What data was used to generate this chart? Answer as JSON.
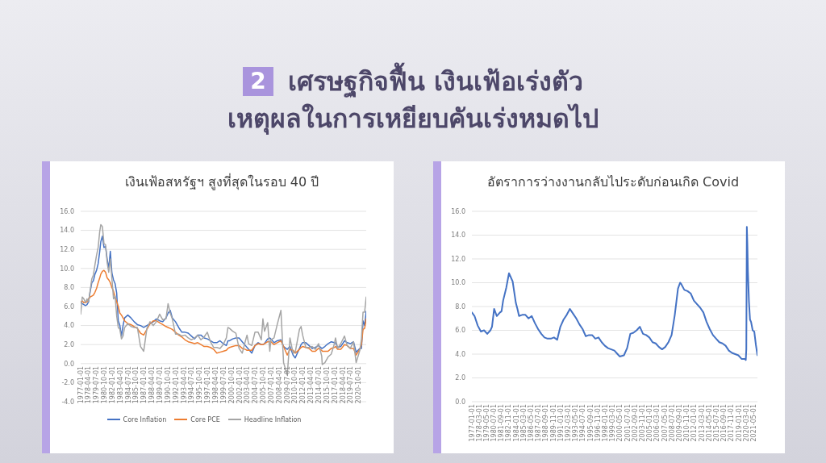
{
  "chart_data": [
    {
      "type": "other",
      "title": "เศรษฐกิจฟื้น เงินเฟ้อเร่งตัว",
      "subtitle": "เหตุผลในการเหยียบคันเร่งหมดไป",
      "annotations": [
        "2"
      ]
    },
    {
      "type": "line",
      "title": "เงินเฟ้อสหรัฐฯ สูงที่สุดในรอบ 40 ปี",
      "grid": "y",
      "legend": "bottom",
      "marker": "none",
      "line_style": "solid",
      "x": [
        "1977-01",
        "1977-04",
        "1977-07",
        "1977-10",
        "1978-01",
        "1978-04",
        "1978-07",
        "1978-10",
        "1979-01",
        "1979-04",
        "1979-07",
        "1979-10",
        "1980-01",
        "1980-03",
        "1980-06",
        "1980-09",
        "1980-12",
        "1981-03",
        "1981-06",
        "1981-09",
        "1981-12",
        "1982-03",
        "1982-06",
        "1982-09",
        "1982-12",
        "1983-03",
        "1983-06",
        "1983-09",
        "1983-12",
        "1984-06",
        "1984-12",
        "1985-06",
        "1985-12",
        "1986-06",
        "1986-12",
        "1987-06",
        "1987-12",
        "1988-06",
        "1988-12",
        "1989-06",
        "1989-12",
        "1990-06",
        "1990-10",
        "1991-02",
        "1991-06",
        "1991-12",
        "1992-06",
        "1992-12",
        "1993-06",
        "1993-12",
        "1994-06",
        "1994-12",
        "1995-06",
        "1995-12",
        "1996-06",
        "1996-12",
        "1997-06",
        "1997-12",
        "1998-06",
        "1998-12",
        "1999-06",
        "1999-12",
        "2000-03",
        "2000-06",
        "2000-12",
        "2001-06",
        "2001-12",
        "2002-06",
        "2002-12",
        "2003-03",
        "2003-06",
        "2003-12",
        "2004-06",
        "2004-12",
        "2005-06",
        "2005-09",
        "2005-12",
        "2006-06",
        "2006-10",
        "2006-12",
        "2007-06",
        "2007-12",
        "2008-07",
        "2008-12",
        "2009-07",
        "2009-12",
        "2010-06",
        "2010-10",
        "2011-06",
        "2011-09",
        "2011-12",
        "2012-06",
        "2012-12",
        "2013-06",
        "2013-12",
        "2014-06",
        "2014-12",
        "2015-01",
        "2015-06",
        "2015-12",
        "2016-06",
        "2016-12",
        "2017-02",
        "2017-06",
        "2017-12",
        "2018-07",
        "2018-12",
        "2019-06",
        "2019-12",
        "2020-05",
        "2020-12",
        "2021-03",
        "2021-06",
        "2021-09",
        "2021-12"
      ],
      "xlim": [
        "1977-01",
        "2021-12"
      ],
      "xticks": [
        "1977-01-01",
        "1978-04-01",
        "1979-07-01",
        "1980-10-01",
        "1982-01-01",
        "1983-04-01",
        "1984-07-01",
        "1985-10-01",
        "1987-01-01",
        "1988-04-01",
        "1989-07-01",
        "1990-10-01",
        "1992-01-01",
        "1993-04-01",
        "1994-07-01",
        "1995-10-01",
        "1997-01-01",
        "1998-04-01",
        "1999-07-01",
        "2000-10-01",
        "2002-01-01",
        "2003-04-01",
        "2004-07-01",
        "2005-10-01",
        "2007-01-01",
        "2008-04-01",
        "2009-07-01",
        "2010-10-01",
        "2012-01-01",
        "2013-04-01",
        "2014-07-01",
        "2015-10-01",
        "2017-01-01",
        "2018-04-01",
        "2019-07-01",
        "2020-10-01"
      ],
      "ylim": [
        -4,
        16
      ],
      "yticks": [
        {
          "value": -4,
          "label": "-4.0"
        },
        {
          "value": -2,
          "label": "-2.0"
        },
        {
          "value": 0,
          "label": "0.0"
        },
        {
          "value": 2,
          "label": "2.0"
        },
        {
          "value": 4,
          "label": "4.0"
        },
        {
          "value": 6,
          "label": "6.0"
        },
        {
          "value": 8,
          "label": "8.0"
        },
        {
          "value": 10,
          "label": "10.0"
        },
        {
          "value": 12,
          "label": "12.0"
        },
        {
          "value": 14,
          "label": "14.0"
        },
        {
          "value": 16,
          "label": "16.0"
        }
      ],
      "series": [
        {
          "name": "Core Inflation",
          "color": "#4472c4",
          "values": [
            6.4,
            6.3,
            6.2,
            6.1,
            6.2,
            6.5,
            7.6,
            8.5,
            8.7,
            9.4,
            9.8,
            10.5,
            11.8,
            12.8,
            13.4,
            12.2,
            12.3,
            11.0,
            10.0,
            11.8,
            9.5,
            8.8,
            8.4,
            7.4,
            4.5,
            4.0,
            2.9,
            4.0,
            4.8,
            5.1,
            4.8,
            4.4,
            4.1,
            4.0,
            3.8,
            4.0,
            4.2,
            4.4,
            4.7,
            4.5,
            4.4,
            4.8,
            5.3,
            5.6,
            4.8,
            4.4,
            3.8,
            3.3,
            3.3,
            3.2,
            2.9,
            2.6,
            3.0,
            3.0,
            2.7,
            2.6,
            2.4,
            2.2,
            2.2,
            2.4,
            2.1,
            1.9,
            2.4,
            2.4,
            2.6,
            2.7,
            2.7,
            2.3,
            1.9,
            1.7,
            1.5,
            1.1,
            1.9,
            2.2,
            2.0,
            2.0,
            2.1,
            2.6,
            2.7,
            2.6,
            2.2,
            2.4,
            2.5,
            1.8,
            1.5,
            1.8,
            0.9,
            0.6,
            1.6,
            2.0,
            2.2,
            2.2,
            1.9,
            1.6,
            1.7,
            1.9,
            1.6,
            1.6,
            1.8,
            2.1,
            2.3,
            2.2,
            2.2,
            1.7,
            1.8,
            2.4,
            2.2,
            2.1,
            2.3,
            1.2,
            1.6,
            1.6,
            4.5,
            4.0,
            5.5
          ]
        },
        {
          "name": "Core PCE",
          "color": "#ed7d31",
          "values": [
            6.5,
            6.6,
            6.4,
            6.4,
            6.5,
            6.8,
            7.0,
            7.1,
            7.2,
            7.5,
            7.9,
            8.5,
            9.0,
            9.4,
            9.7,
            9.8,
            9.6,
            9.0,
            8.8,
            8.5,
            8.0,
            7.6,
            7.0,
            6.5,
            6.0,
            5.3,
            5.1,
            4.8,
            4.5,
            4.2,
            4.1,
            3.9,
            3.7,
            3.2,
            3.0,
            3.6,
            4.2,
            4.5,
            4.5,
            4.3,
            4.1,
            3.9,
            3.8,
            3.7,
            3.6,
            3.3,
            3.0,
            2.8,
            2.5,
            2.3,
            2.2,
            2.1,
            2.2,
            2.0,
            1.8,
            1.8,
            1.7,
            1.5,
            1.1,
            1.2,
            1.3,
            1.4,
            1.6,
            1.7,
            1.8,
            1.9,
            1.9,
            1.6,
            1.5,
            1.4,
            1.4,
            1.4,
            1.9,
            2.1,
            2.0,
            2.0,
            2.1,
            2.3,
            2.3,
            2.3,
            2.0,
            2.2,
            2.4,
            1.8,
            0.9,
            1.5,
            1.4,
            1.1,
            1.5,
            1.7,
            1.8,
            1.7,
            1.6,
            1.3,
            1.3,
            1.6,
            1.4,
            1.3,
            1.3,
            1.3,
            1.6,
            1.7,
            1.8,
            1.5,
            1.5,
            2.0,
            1.9,
            1.6,
            1.6,
            0.9,
            1.5,
            2.0,
            3.6,
            3.7,
            4.7
          ]
        },
        {
          "name": "Headline Inflation",
          "color": "#a5a5a5",
          "values": [
            5.2,
            7.0,
            6.8,
            6.4,
            6.8,
            6.5,
            7.7,
            8.9,
            9.3,
            10.4,
            11.4,
            12.2,
            13.9,
            14.6,
            14.4,
            12.6,
            12.5,
            10.6,
            9.6,
            11.0,
            8.9,
            6.8,
            7.1,
            5.0,
            3.8,
            3.6,
            2.6,
            2.9,
            3.8,
            4.2,
            3.9,
            3.8,
            3.8,
            1.8,
            1.3,
            3.7,
            4.4,
            4.0,
            4.4,
            5.2,
            4.6,
            4.7,
            6.3,
            5.3,
            4.7,
            3.1,
            3.1,
            2.9,
            3.0,
            2.7,
            2.5,
            2.7,
            3.0,
            2.5,
            2.8,
            3.3,
            2.3,
            1.7,
            1.7,
            1.6,
            2.0,
            2.7,
            3.8,
            3.7,
            3.4,
            3.2,
            1.6,
            1.1,
            2.4,
            3.0,
            2.1,
            1.9,
            3.3,
            3.3,
            2.5,
            4.7,
            3.4,
            4.3,
            1.3,
            2.5,
            2.7,
            4.1,
            5.6,
            0.1,
            -1.2,
            2.7,
            1.1,
            1.2,
            3.6,
            3.9,
            3.0,
            1.7,
            1.7,
            1.8,
            1.5,
            2.1,
            0.8,
            -0.1,
            0.1,
            0.7,
            1.0,
            2.1,
            2.7,
            1.6,
            2.1,
            2.9,
            1.9,
            1.6,
            2.3,
            0.1,
            1.4,
            2.6,
            5.4,
            5.4,
            7.0
          ]
        }
      ]
    },
    {
      "type": "line",
      "title": "อัตราการว่างงานกลับไประดับก่อนเกิด Covid",
      "grid": "y",
      "marker": "none",
      "line_style": "solid",
      "x": [
        "1977-01",
        "1977-06",
        "1977-12",
        "1978-06",
        "1978-12",
        "1979-06",
        "1979-12",
        "1980-03",
        "1980-07",
        "1980-12",
        "1981-06",
        "1981-09",
        "1981-12",
        "1982-06",
        "1982-11",
        "1983-06",
        "1983-12",
        "1984-03",
        "1984-06",
        "1984-12",
        "1985-06",
        "1985-12",
        "1986-06",
        "1986-12",
        "1987-06",
        "1987-12",
        "1988-06",
        "1988-12",
        "1989-06",
        "1989-12",
        "1990-06",
        "1990-12",
        "1991-06",
        "1991-12",
        "1992-06",
        "1992-12",
        "1993-06",
        "1993-12",
        "1994-06",
        "1994-12",
        "1995-06",
        "1995-12",
        "1996-06",
        "1996-12",
        "1997-06",
        "1997-12",
        "1998-06",
        "1998-12",
        "1999-06",
        "1999-12",
        "2000-04",
        "2000-12",
        "2001-06",
        "2001-12",
        "2002-06",
        "2002-12",
        "2003-06",
        "2003-12",
        "2004-06",
        "2004-12",
        "2005-06",
        "2005-12",
        "2006-06",
        "2006-12",
        "2007-06",
        "2007-12",
        "2008-06",
        "2008-12",
        "2009-06",
        "2009-10",
        "2009-12",
        "2010-06",
        "2010-12",
        "2011-06",
        "2011-12",
        "2012-06",
        "2012-12",
        "2013-06",
        "2013-12",
        "2014-06",
        "2014-12",
        "2015-06",
        "2015-12",
        "2016-06",
        "2016-12",
        "2017-06",
        "2017-12",
        "2018-06",
        "2018-12",
        "2019-06",
        "2019-12",
        "2020-02",
        "2020-03",
        "2020-04",
        "2020-05",
        "2020-06",
        "2020-08",
        "2020-10",
        "2020-12",
        "2021-03",
        "2021-06",
        "2021-09",
        "2021-12"
      ],
      "xlim": [
        "1977-01",
        "2021-12"
      ],
      "xticks": [
        "1977-01-01",
        "1978-03-01",
        "1979-05-01",
        "1980-07-01",
        "1981-09-01",
        "1982-11-01",
        "1984-01-01",
        "1985-03-01",
        "1986-05-01",
        "1987-07-01",
        "1988-09-01",
        "1989-11-01",
        "1991-01-01",
        "1992-03-01",
        "1993-05-01",
        "1994-07-01",
        "1995-09-01",
        "1996-11-01",
        "1998-01-01",
        "1999-03-01",
        "2000-05-01",
        "2001-07-01",
        "2002-09-01",
        "2003-11-01",
        "2005-01-01",
        "2006-03-01",
        "2007-05-01",
        "2008-07-01",
        "2009-09-01",
        "2010-11-01",
        "2012-01-01",
        "2013-03-01",
        "2014-05-01",
        "2015-07-01",
        "2016-09-01",
        "2017-11-01",
        "2019-01-01",
        "2020-03-01",
        "2021-05-01"
      ],
      "ylim": [
        0,
        16
      ],
      "yticks": [
        {
          "value": 0,
          "label": "0.0"
        },
        {
          "value": 2,
          "label": "2.0"
        },
        {
          "value": 4,
          "label": "4.0"
        },
        {
          "value": 6,
          "label": "6.0"
        },
        {
          "value": 8,
          "label": "8.0"
        },
        {
          "value": 10,
          "label": "10.0"
        },
        {
          "value": 12,
          "label": "12.0"
        },
        {
          "value": 14,
          "label": "14.0"
        },
        {
          "value": 16,
          "label": "16.0"
        }
      ],
      "series": [
        {
          "color": "#4472c4",
          "values": [
            7.5,
            7.2,
            6.4,
            5.9,
            6.0,
            5.7,
            6.0,
            6.3,
            7.8,
            7.2,
            7.5,
            7.6,
            8.5,
            9.6,
            10.8,
            10.1,
            8.3,
            7.8,
            7.2,
            7.3,
            7.3,
            7.0,
            7.2,
            6.6,
            6.1,
            5.7,
            5.4,
            5.3,
            5.3,
            5.4,
            5.2,
            6.3,
            6.9,
            7.3,
            7.8,
            7.4,
            7.0,
            6.5,
            6.1,
            5.5,
            5.6,
            5.6,
            5.3,
            5.4,
            5.0,
            4.7,
            4.5,
            4.4,
            4.3,
            4.0,
            3.8,
            3.9,
            4.5,
            5.7,
            5.8,
            6.0,
            6.3,
            5.7,
            5.6,
            5.4,
            5.0,
            4.9,
            4.6,
            4.4,
            4.6,
            5.0,
            5.6,
            7.3,
            9.5,
            10.0,
            9.9,
            9.4,
            9.3,
            9.1,
            8.5,
            8.2,
            7.9,
            7.5,
            6.7,
            6.1,
            5.6,
            5.3,
            5.0,
            4.9,
            4.7,
            4.3,
            4.1,
            4.0,
            3.9,
            3.6,
            3.6,
            3.5,
            4.4,
            14.7,
            13.2,
            11.0,
            8.4,
            6.9,
            6.7,
            6.0,
            5.9,
            4.8,
            3.9
          ]
        }
      ]
    }
  ]
}
